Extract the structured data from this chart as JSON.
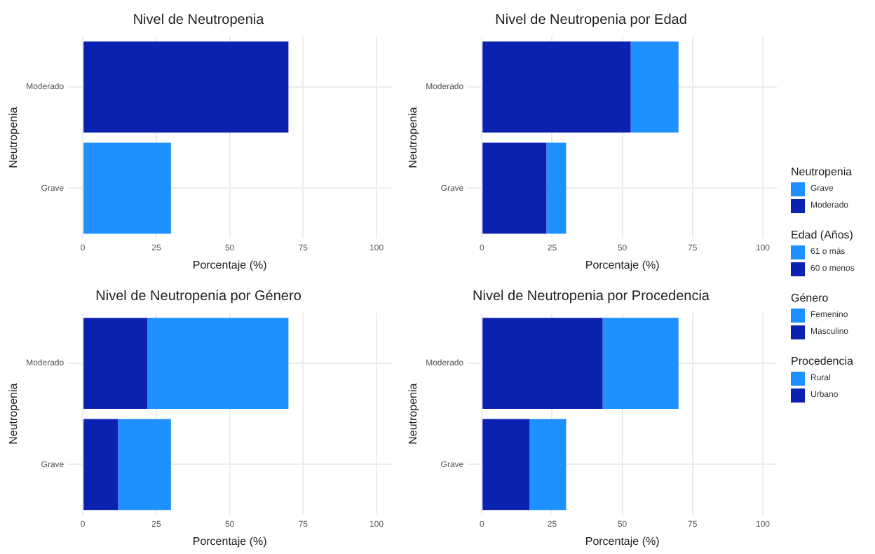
{
  "chart_data": [
    {
      "type": "bar",
      "title": "Nivel de Neutropenia",
      "xlabel": "Porcentaje (%)",
      "ylabel": "Neutropenia",
      "orientation": "horizontal",
      "stacked": true,
      "categories": [
        "Moderado",
        "Grave"
      ],
      "legend_title": "Neutropenia",
      "legend": "right",
      "grid": true,
      "xlim": [
        -5,
        105
      ],
      "xticks": [
        0,
        25,
        50,
        75,
        100
      ],
      "series": [
        {
          "name": "Moderado",
          "color": "#0b22b0",
          "values": [
            70,
            null
          ]
        },
        {
          "name": "Grave",
          "color": "#1e90ff",
          "values": [
            null,
            30
          ]
        }
      ]
    },
    {
      "type": "bar",
      "title": "Nivel de Neutropenia por Edad",
      "xlabel": "Porcentaje (%)",
      "ylabel": "Neutropenia",
      "orientation": "horizontal",
      "stacked": true,
      "categories": [
        "Moderado",
        "Grave"
      ],
      "legend_title": "Edad (Años)",
      "legend": "right",
      "grid": true,
      "xlim": [
        -5,
        105
      ],
      "xticks": [
        0,
        25,
        50,
        75,
        100
      ],
      "series": [
        {
          "name": "60 o menos",
          "color": "#0b22b0",
          "values": [
            53,
            23
          ]
        },
        {
          "name": "61 o más",
          "color": "#1e90ff",
          "values": [
            17,
            7
          ]
        }
      ]
    },
    {
      "type": "bar",
      "title": "Nivel de Neutropenia por Género",
      "xlabel": "Porcentaje (%)",
      "ylabel": "Neutropenia",
      "orientation": "horizontal",
      "stacked": true,
      "categories": [
        "Moderado",
        "Grave"
      ],
      "legend_title": "Género",
      "legend": "right",
      "grid": true,
      "xlim": [
        -5,
        105
      ],
      "xticks": [
        0,
        25,
        50,
        75,
        100
      ],
      "series": [
        {
          "name": "Masculino",
          "color": "#0b22b0",
          "values": [
            22,
            12
          ]
        },
        {
          "name": "Femenino",
          "color": "#1e90ff",
          "values": [
            48,
            18
          ]
        }
      ]
    },
    {
      "type": "bar",
      "title": "Nivel de Neutropenia por Procedencia",
      "xlabel": "Porcentaje (%)",
      "ylabel": "Neutropenia",
      "orientation": "horizontal",
      "stacked": true,
      "categories": [
        "Moderado",
        "Grave"
      ],
      "legend_title": "Procedencia",
      "legend": "right",
      "grid": true,
      "xlim": [
        -5,
        105
      ],
      "xticks": [
        0,
        25,
        50,
        75,
        100
      ],
      "series": [
        {
          "name": "Urbano",
          "color": "#0b22b0",
          "values": [
            43,
            17
          ]
        },
        {
          "name": "Rural",
          "color": "#1e90ff",
          "values": [
            27,
            13
          ]
        }
      ]
    }
  ]
}
